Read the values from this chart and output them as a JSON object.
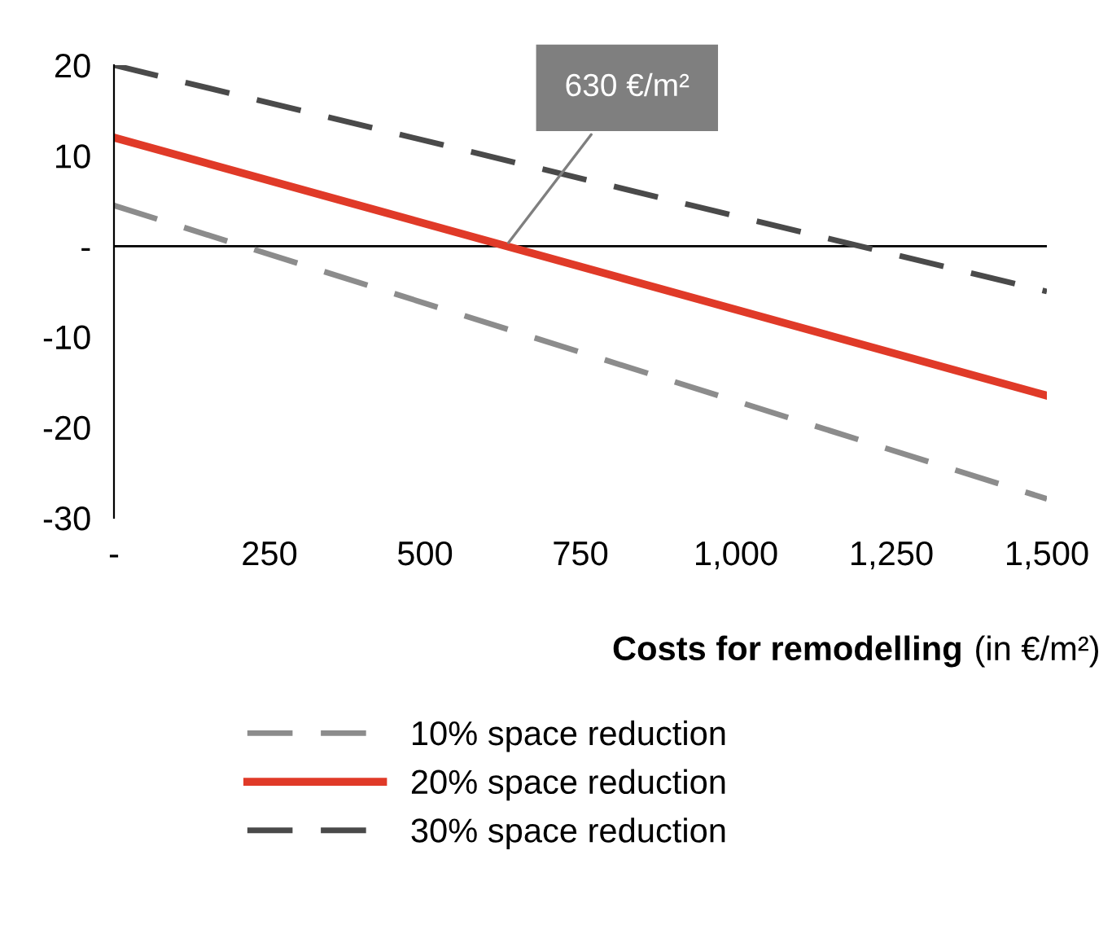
{
  "chart_data": {
    "type": "line",
    "xlabel": "Costs for remodelling (in €/m²)",
    "x": [
      0,
      1500
    ],
    "series": [
      {
        "name": "10% space reduction",
        "color": "#8c8c8c",
        "values": [
          4.5,
          -27.9
        ],
        "line_style": "dashed"
      },
      {
        "name": "20% space reduction",
        "color": "#e03a28",
        "values": [
          12.0,
          -16.5
        ],
        "line_style": "solid"
      },
      {
        "name": "30% space reduction",
        "color": "#4a4a4a",
        "values": [
          20,
          -5.0
        ],
        "line_style": "dashed"
      }
    ],
    "xlim": [
      0,
      1500
    ],
    "xticks": [
      {
        "value": 0,
        "label": "-"
      },
      250,
      500,
      750,
      {
        "value": 1000,
        "label": "1,000"
      },
      {
        "value": 1250,
        "label": "1,250"
      },
      {
        "value": 1500,
        "label": "1,500"
      }
    ],
    "ylim": [
      -30,
      20
    ],
    "yticks": [
      -30,
      -20,
      -10,
      {
        "value": 0,
        "label": "-"
      },
      10,
      20
    ],
    "ref_lines": [
      {
        "axis": "y",
        "value": 0,
        "color": "#000000"
      }
    ],
    "annotations": [
      {
        "text": "630 €/m²",
        "x": 630,
        "y": 0
      }
    ],
    "grid": false,
    "legend": "bottom",
    "marker": "none"
  }
}
